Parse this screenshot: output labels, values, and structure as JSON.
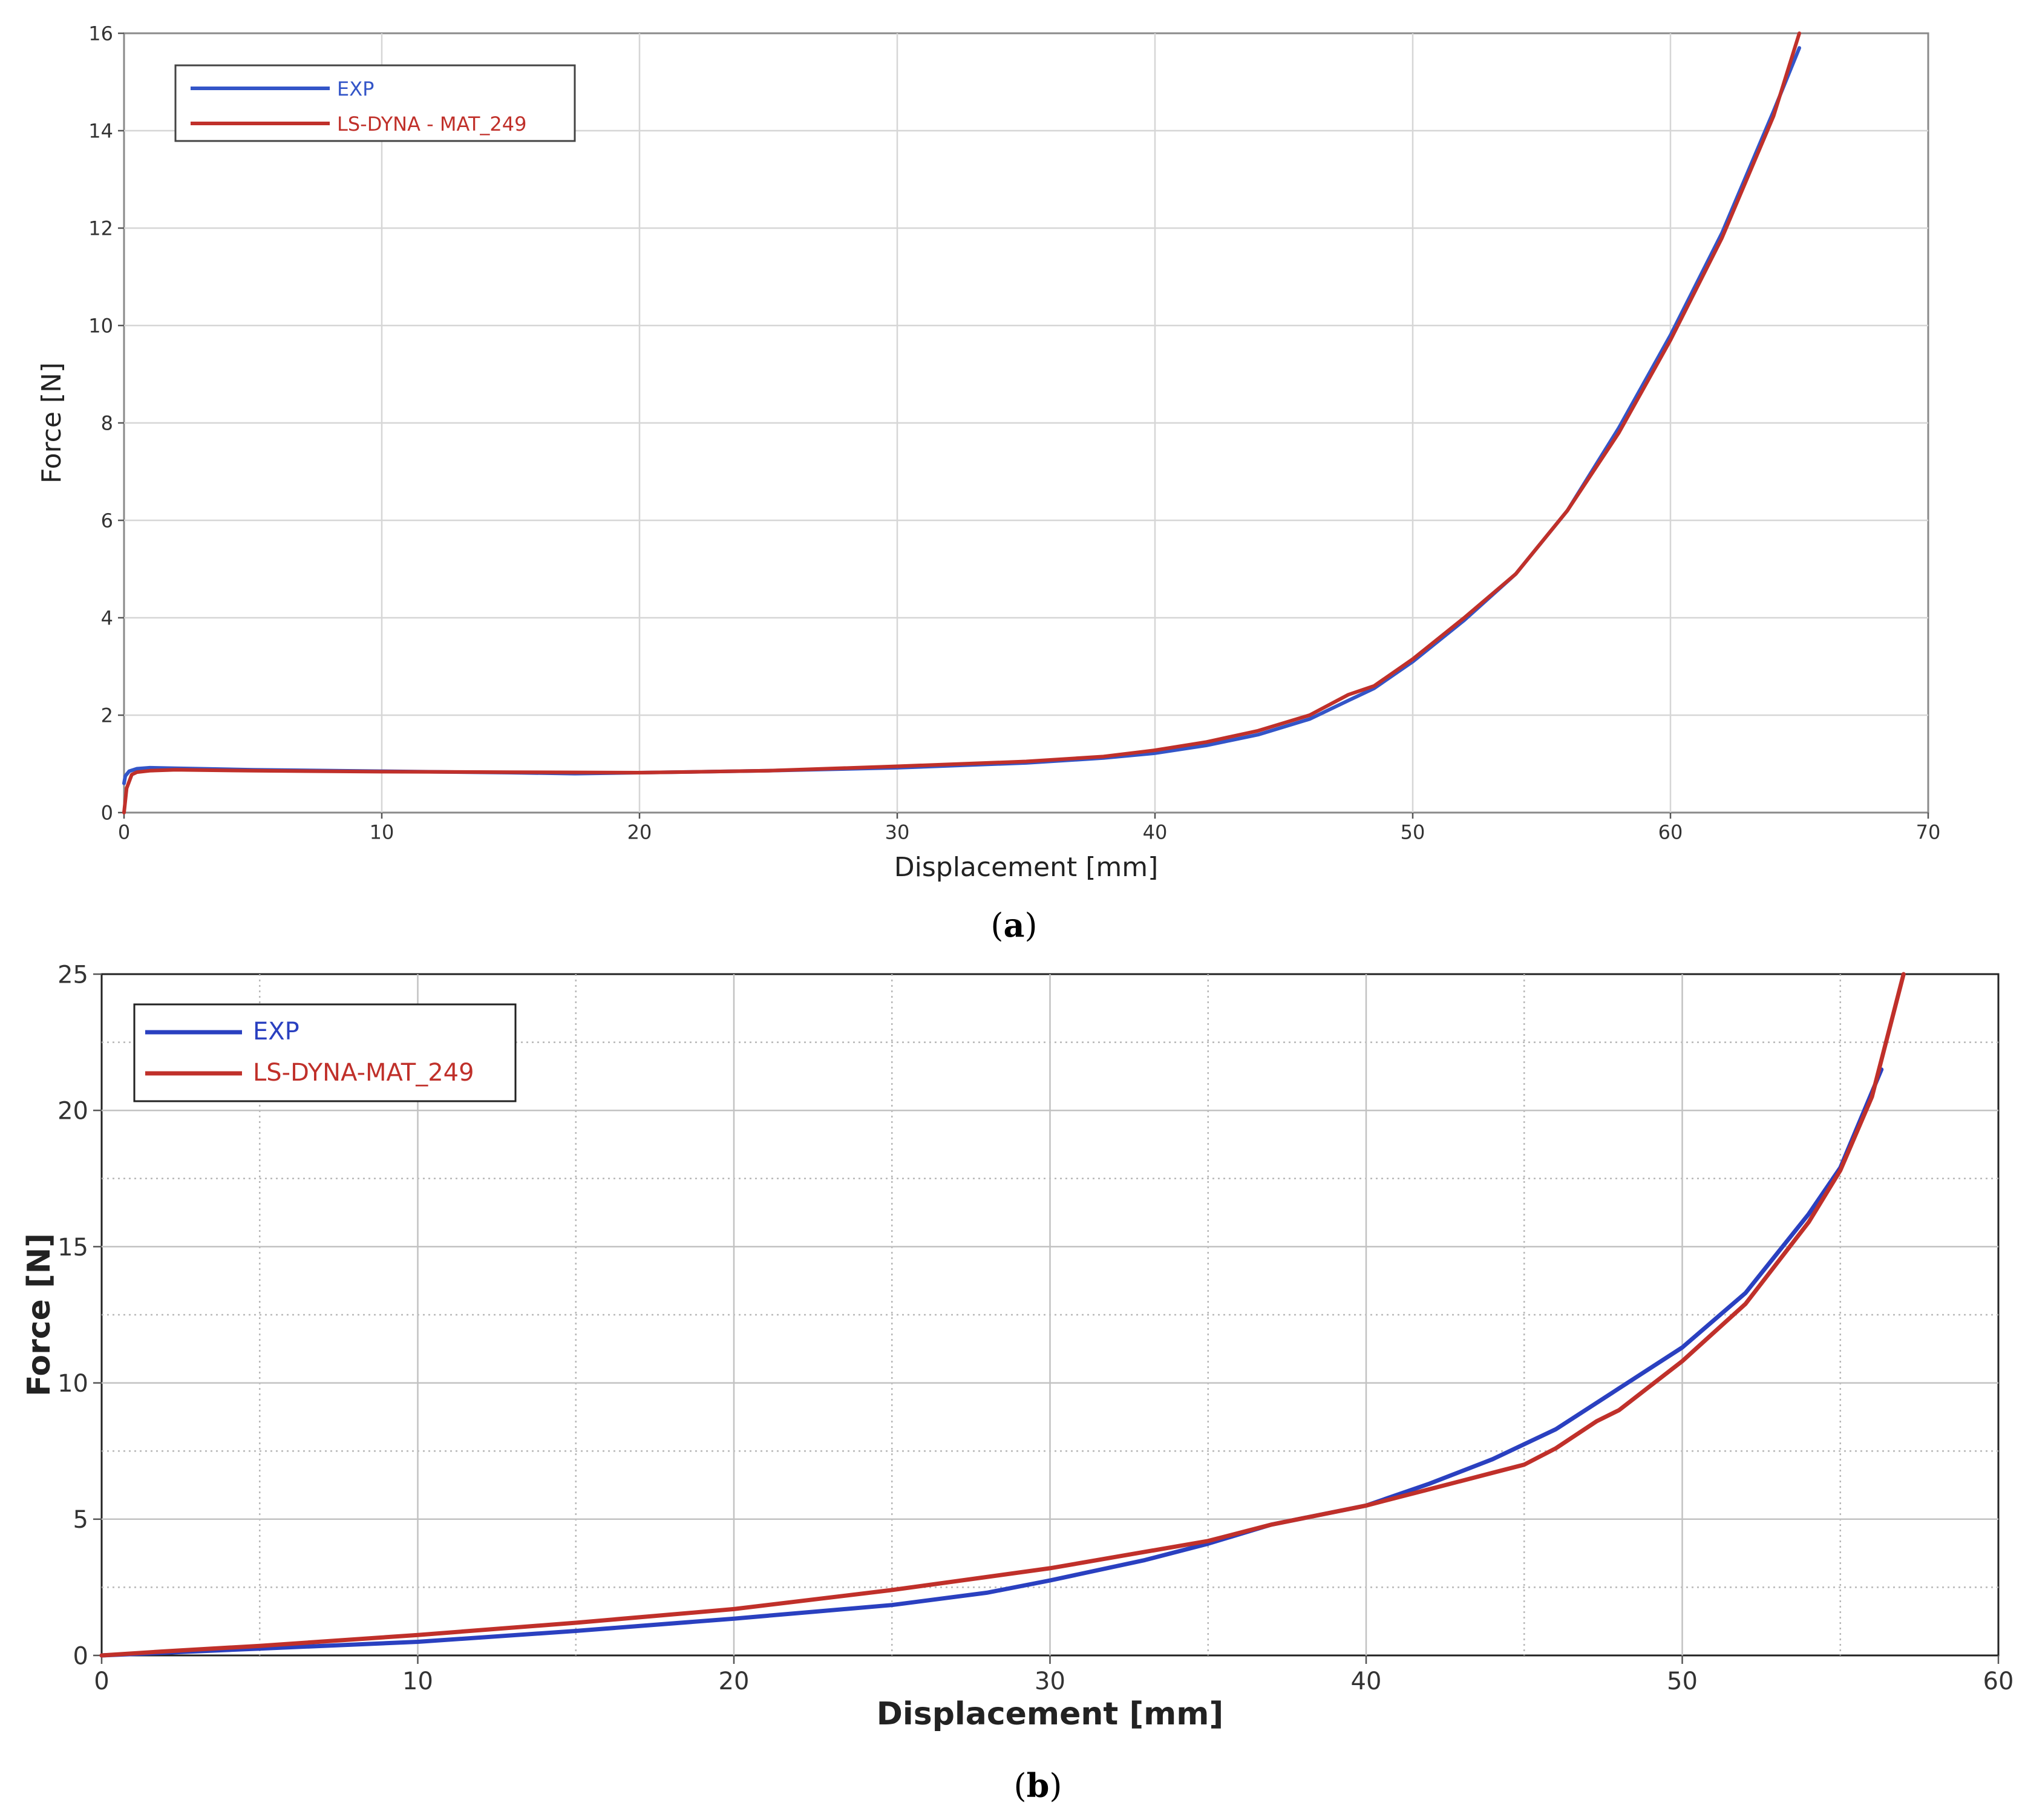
{
  "chart_data": [
    {
      "id": "a",
      "type": "line",
      "caption": "(a)",
      "caption_letter": "a",
      "xlabel": "Displacement [mm]",
      "ylabel": "Force [N]",
      "xlim": [
        0,
        70
      ],
      "ylim": [
        0,
        16
      ],
      "xticks": [
        0,
        10,
        20,
        30,
        40,
        50,
        60,
        70
      ],
      "yticks": [
        0,
        2,
        4,
        6,
        8,
        10,
        12,
        14,
        16
      ],
      "grid": "major-only",
      "legend": "top-left",
      "series": [
        {
          "name": "EXP",
          "color": "#3355c8",
          "x": [
            0,
            0.05,
            0.2,
            0.5,
            1,
            2,
            5,
            10,
            15,
            17.5,
            20,
            25,
            30,
            35,
            38,
            40,
            42,
            44,
            46,
            47.5,
            48.5,
            50,
            52,
            54,
            56,
            58,
            60,
            62,
            64,
            65
          ],
          "y": [
            0.6,
            0.75,
            0.85,
            0.9,
            0.92,
            0.91,
            0.88,
            0.85,
            0.82,
            0.8,
            0.82,
            0.86,
            0.92,
            1.02,
            1.12,
            1.22,
            1.38,
            1.6,
            1.92,
            2.3,
            2.55,
            3.1,
            3.95,
            4.9,
            6.2,
            7.9,
            9.8,
            11.9,
            14.4,
            15.7
          ]
        },
        {
          "name": "LS-DYNA - MAT_249",
          "color": "#c0302a",
          "x": [
            0,
            0.1,
            0.3,
            0.5,
            1,
            2,
            5,
            10,
            15,
            20,
            25,
            30,
            35,
            38,
            40,
            42,
            44,
            46,
            47.5,
            48.5,
            50,
            52,
            54,
            56,
            58,
            60,
            62,
            64,
            65
          ],
          "y": [
            0,
            0.5,
            0.78,
            0.83,
            0.86,
            0.88,
            0.86,
            0.84,
            0.83,
            0.82,
            0.86,
            0.95,
            1.05,
            1.15,
            1.28,
            1.45,
            1.68,
            2.0,
            2.42,
            2.6,
            3.15,
            4.0,
            4.9,
            6.2,
            7.8,
            9.7,
            11.8,
            14.3,
            16.0
          ]
        }
      ]
    },
    {
      "id": "b",
      "type": "line",
      "caption": "(b)",
      "caption_letter": "b",
      "xlabel": "Displacement [mm]",
      "ylabel": "Force [N]",
      "xlim": [
        0,
        60
      ],
      "ylim": [
        0,
        25
      ],
      "xticks": [
        0,
        10,
        20,
        30,
        40,
        50,
        60
      ],
      "yticks": [
        0,
        5,
        10,
        15,
        20,
        25
      ],
      "minor_xticks": [
        5,
        15,
        25,
        35,
        45,
        55
      ],
      "minor_yticks": [
        2.5,
        7.5,
        12.5,
        17.5,
        22.5
      ],
      "grid": "major-and-minor",
      "legend": "top-left",
      "series": [
        {
          "name": "EXP",
          "color": "#2a40c0",
          "x": [
            0,
            2,
            5,
            10,
            15,
            20,
            25,
            28,
            30,
            33,
            35,
            37,
            40,
            42,
            44,
            46,
            48,
            50,
            52,
            54,
            55,
            56.3
          ],
          "y": [
            0,
            0.1,
            0.25,
            0.5,
            0.9,
            1.35,
            1.85,
            2.3,
            2.75,
            3.5,
            4.1,
            4.8,
            5.5,
            6.3,
            7.2,
            8.3,
            9.8,
            11.3,
            13.3,
            16.2,
            17.9,
            21.5
          ]
        },
        {
          "name": "LS-DYNA-MAT_249",
          "color": "#c0302a",
          "x": [
            0,
            2,
            5,
            10,
            15,
            20,
            25,
            30,
            35,
            37,
            40,
            42,
            44,
            45,
            46,
            47.3,
            48,
            50,
            52,
            54,
            55,
            56,
            57
          ],
          "y": [
            0,
            0.15,
            0.35,
            0.75,
            1.2,
            1.7,
            2.4,
            3.2,
            4.2,
            4.8,
            5.5,
            6.1,
            6.7,
            7.0,
            7.6,
            8.6,
            9.0,
            10.8,
            12.9,
            15.9,
            17.8,
            20.5,
            25.0
          ]
        }
      ]
    }
  ]
}
